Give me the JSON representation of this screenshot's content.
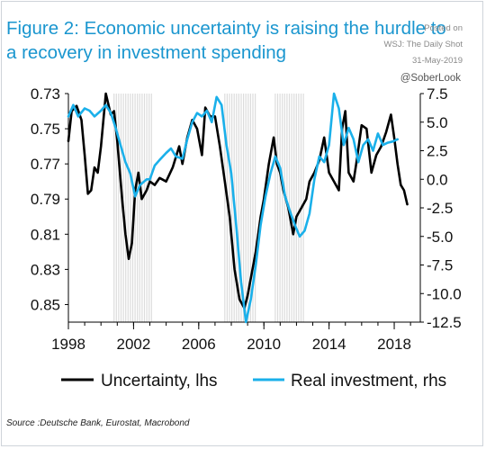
{
  "title": "Figure 2: Economic uncertainty is raising the hurdle to a recovery in investment spending",
  "watermark": {
    "line1": "Posted on",
    "line2": "WSJ: The Daily Shot",
    "line3": "31-May-2019",
    "handle": "@SoberLook"
  },
  "source": "Source :Deutsche Bank, Eurostat, Macrobond",
  "colors": {
    "title": "#1a96cf",
    "uncertainty": "#000000",
    "investment": "#1ab0ea",
    "recession": "#dcdcdc"
  },
  "chart_data": {
    "type": "line",
    "title": "Figure 2: Economic uncertainty is raising the hurdle to a recovery in investment spending",
    "x_ticks": [
      "1998",
      "2002",
      "2006",
      "2010",
      "2014",
      "2018"
    ],
    "x_range": [
      1998,
      2019.6
    ],
    "y_left": {
      "inverted": true,
      "range": [
        0.73,
        0.86
      ],
      "ticks": [
        "0.73",
        "0.75",
        "0.77",
        "0.79",
        "0.81",
        "0.83",
        "0.85"
      ]
    },
    "y_right": {
      "range": [
        -12.5,
        7.5
      ],
      "ticks": [
        "7.5",
        "5.0",
        "2.5",
        "0.0",
        "-2.5",
        "-5.0",
        "-7.5",
        "-10.0",
        "-12.5"
      ]
    },
    "recession_bands": [
      [
        2000.8,
        2003.2
      ],
      [
        2007.6,
        2009.5
      ],
      [
        2010.7,
        2012.5
      ]
    ],
    "legend": {
      "position": "bottom"
    },
    "series": [
      {
        "name": "Uncertainty, lhs",
        "axis": "left",
        "x": [
          1998.0,
          1998.2,
          1998.5,
          1998.8,
          1999.0,
          1999.2,
          1999.4,
          1999.6,
          1999.8,
          2000.0,
          2000.3,
          2000.6,
          2000.8,
          2001.0,
          2001.3,
          2001.5,
          2001.7,
          2001.9,
          2002.1,
          2002.3,
          2002.5,
          2002.8,
          2003.0,
          2003.3,
          2003.6,
          2004.0,
          2004.4,
          2004.8,
          2005.0,
          2005.3,
          2005.6,
          2005.9,
          2006.2,
          2006.4,
          2006.7,
          2007.0,
          2007.3,
          2007.6,
          2007.9,
          2008.2,
          2008.5,
          2008.8,
          2009.0,
          2009.2,
          2009.5,
          2009.8,
          2010.0,
          2010.3,
          2010.6,
          2010.8,
          2011.0,
          2011.2,
          2011.5,
          2011.8,
          2012.0,
          2012.3,
          2012.6,
          2012.8,
          2013.1,
          2013.4,
          2013.7,
          2014.0,
          2014.3,
          2014.6,
          2014.8,
          2015.0,
          2015.2,
          2015.5,
          2015.7,
          2016.0,
          2016.3,
          2016.6,
          2016.9,
          2017.2,
          2017.5,
          2017.8,
          2018.0,
          2018.2,
          2018.4,
          2018.6,
          2018.8
        ],
        "values": [
          0.757,
          0.74,
          0.737,
          0.745,
          0.765,
          0.787,
          0.785,
          0.772,
          0.775,
          0.76,
          0.73,
          0.742,
          0.74,
          0.757,
          0.79,
          0.81,
          0.824,
          0.815,
          0.785,
          0.775,
          0.79,
          0.785,
          0.78,
          0.782,
          0.778,
          0.78,
          0.772,
          0.76,
          0.77,
          0.755,
          0.745,
          0.75,
          0.765,
          0.738,
          0.743,
          0.743,
          0.76,
          0.78,
          0.8,
          0.83,
          0.847,
          0.852,
          0.845,
          0.835,
          0.82,
          0.8,
          0.79,
          0.77,
          0.755,
          0.77,
          0.775,
          0.785,
          0.795,
          0.81,
          0.8,
          0.795,
          0.79,
          0.78,
          0.775,
          0.768,
          0.755,
          0.775,
          0.78,
          0.785,
          0.75,
          0.74,
          0.775,
          0.78,
          0.768,
          0.748,
          0.75,
          0.775,
          0.765,
          0.76,
          0.752,
          0.742,
          0.755,
          0.77,
          0.782,
          0.785,
          0.793
        ]
      },
      {
        "name": "Real investment, rhs",
        "axis": "right",
        "x": [
          1998.0,
          1998.3,
          1998.6,
          1999.0,
          1999.3,
          1999.6,
          2000.0,
          2000.3,
          2000.6,
          2000.9,
          2001.2,
          2001.5,
          2001.8,
          2002.1,
          2002.4,
          2002.8,
          2003.0,
          2003.3,
          2003.6,
          2004.0,
          2004.3,
          2004.6,
          2005.0,
          2005.3,
          2005.6,
          2005.9,
          2006.2,
          2006.5,
          2006.8,
          2007.1,
          2007.4,
          2007.7,
          2008.0,
          2008.3,
          2008.6,
          2008.9,
          2009.2,
          2009.5,
          2009.8,
          2010.1,
          2010.4,
          2010.7,
          2011.0,
          2011.3,
          2011.6,
          2011.9,
          2012.2,
          2012.5,
          2012.8,
          2013.1,
          2013.4,
          2013.7,
          2014.0,
          2014.3,
          2014.6,
          2014.9,
          2015.2,
          2015.5,
          2015.8,
          2016.1,
          2016.4,
          2016.7,
          2017.0,
          2017.3,
          2017.6,
          2017.9,
          2018.2
        ],
        "values": [
          5.5,
          6.5,
          5.5,
          6.2,
          6.0,
          5.5,
          6.0,
          6.5,
          5.8,
          4.5,
          3.0,
          1.5,
          0.5,
          -1.5,
          -0.5,
          0.0,
          0.0,
          1.2,
          1.7,
          2.3,
          2.7,
          2.0,
          1.8,
          3.5,
          5.0,
          5.8,
          5.5,
          6.0,
          5.0,
          7.2,
          6.5,
          3.0,
          0.5,
          -4.0,
          -9.0,
          -12.5,
          -10.5,
          -7.5,
          -4.0,
          -1.5,
          0.5,
          2.0,
          1.0,
          -1.5,
          -2.8,
          -4.0,
          -5.0,
          -4.5,
          -3.0,
          0.0,
          2.0,
          1.5,
          3.0,
          7.5,
          6.2,
          3.0,
          4.5,
          3.5,
          1.5,
          3.0,
          3.5,
          2.5,
          4.0,
          3.0,
          3.2,
          3.3,
          3.5
        ]
      }
    ]
  }
}
